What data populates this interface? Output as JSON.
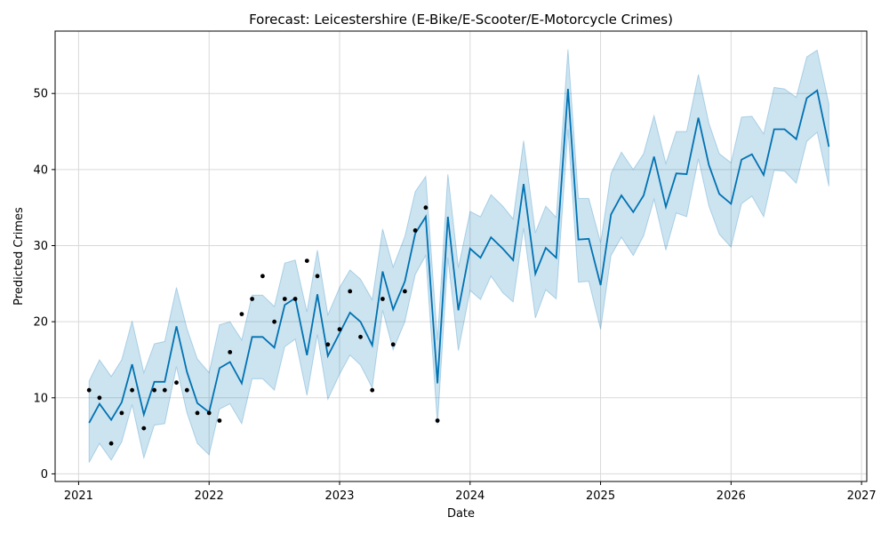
{
  "chart_data": {
    "type": "line",
    "title": "Forecast: Leicestershire (E-Bike/E-Scooter/E-Motorcycle Crimes)",
    "xlabel": "Date",
    "ylabel": "Predicted Crimes",
    "xlim": [
      2020.82,
      2027.04
    ],
    "ylim": [
      -1,
      58.2
    ],
    "x_ticks": [
      2021,
      2022,
      2023,
      2024,
      2025,
      2026,
      2027
    ],
    "y_ticks": [
      0,
      10,
      20,
      30,
      40,
      50
    ],
    "grid": true,
    "colors": {
      "forecast": "#0072B2",
      "band": "#0072B2",
      "observed": "#000000",
      "grid": "#d9d9d9"
    },
    "observed": {
      "x": [
        2021.08,
        2021.16,
        2021.25,
        2021.33,
        2021.41,
        2021.5,
        2021.58,
        2021.66,
        2021.75,
        2021.83,
        2021.91,
        2022.0,
        2022.08,
        2022.16,
        2022.25,
        2022.33,
        2022.41,
        2022.5,
        2022.58,
        2022.66,
        2022.75,
        2022.83,
        2022.91,
        2023.0,
        2023.08,
        2023.16,
        2023.25,
        2023.33,
        2023.41,
        2023.5,
        2023.58,
        2023.66,
        2023.75
      ],
      "y": [
        11,
        10,
        4,
        8,
        11,
        6,
        11,
        11,
        12,
        11,
        8,
        8,
        7,
        16,
        21,
        23,
        26,
        20,
        23,
        23,
        28,
        26,
        17,
        19,
        24,
        18,
        11,
        23,
        17,
        24,
        32,
        35,
        7
      ]
    },
    "forecast": {
      "x": [
        2021.08,
        2021.16,
        2021.25,
        2021.33,
        2021.41,
        2021.5,
        2021.58,
        2021.66,
        2021.75,
        2021.83,
        2021.91,
        2022.0,
        2022.08,
        2022.16,
        2022.25,
        2022.33,
        2022.41,
        2022.5,
        2022.58,
        2022.66,
        2022.75,
        2022.83,
        2022.91,
        2023.0,
        2023.08,
        2023.16,
        2023.25,
        2023.33,
        2023.41,
        2023.5,
        2023.58,
        2023.66,
        2023.75,
        2023.83,
        2023.91,
        2024.0,
        2024.08,
        2024.16,
        2024.25,
        2024.33,
        2024.41,
        2024.5,
        2024.58,
        2024.66,
        2024.75,
        2024.83,
        2024.91,
        2025.0,
        2025.08,
        2025.16,
        2025.25,
        2025.33,
        2025.41,
        2025.5,
        2025.58,
        2025.66,
        2025.75,
        2025.83,
        2025.91,
        2026.0,
        2026.08,
        2026.16,
        2026.25,
        2026.33,
        2026.41,
        2026.5,
        2026.58,
        2026.66,
        2026.75
      ],
      "yhat": [
        6.7,
        9.2,
        7.1,
        9.4,
        14.4,
        7.8,
        12.1,
        12.1,
        19.4,
        13.4,
        9.3,
        8.1,
        13.9,
        14.7,
        11.9,
        18.0,
        18.0,
        16.6,
        22.2,
        23.1,
        15.6,
        23.6,
        15.5,
        18.5,
        21.2,
        20.0,
        16.9,
        26.6,
        21.6,
        25.3,
        31.6,
        33.8,
        11.9,
        33.8,
        21.5,
        29.6,
        28.4,
        31.1,
        29.6,
        28.1,
        38.1,
        26.3,
        29.7,
        28.4,
        50.6,
        30.8,
        30.9,
        24.8,
        34.1,
        36.6,
        34.4,
        36.6,
        41.7,
        35.1,
        39.5,
        39.4,
        46.8,
        40.6,
        36.8,
        35.5,
        41.3,
        42.0,
        39.3,
        45.3,
        45.3,
        44.0,
        49.4,
        50.4,
        43.0
      ],
      "yhat_lower": [
        1.5,
        4.0,
        1.8,
        4.2,
        9.1,
        2.1,
        6.4,
        6.6,
        14.1,
        8.0,
        4.0,
        2.5,
        8.5,
        9.2,
        6.6,
        12.5,
        12.5,
        11.0,
        16.7,
        17.7,
        10.3,
        18.3,
        9.8,
        13.1,
        15.6,
        14.3,
        11.3,
        21.5,
        16.3,
        20.0,
        26.2,
        28.7,
        6.5,
        28.4,
        16.2,
        24.1,
        22.9,
        26.0,
        23.8,
        22.6,
        32.3,
        20.5,
        24.2,
        23.0,
        45.3,
        25.2,
        25.3,
        19.0,
        28.7,
        31.1,
        28.7,
        31.3,
        36.1,
        29.4,
        34.3,
        33.8,
        41.4,
        35.2,
        31.5,
        29.8,
        35.5,
        36.5,
        33.8,
        39.9,
        39.8,
        38.2,
        43.7,
        44.9,
        37.8
      ],
      "yhat_upper": [
        12.2,
        15.0,
        12.8,
        15.0,
        20.1,
        13.3,
        17.1,
        17.4,
        24.5,
        19.1,
        15.1,
        13.3,
        19.6,
        20.0,
        17.6,
        23.5,
        23.5,
        22.0,
        27.7,
        28.1,
        21.3,
        29.4,
        20.9,
        24.5,
        26.8,
        25.6,
        22.9,
        32.2,
        27.2,
        31.2,
        37.1,
        39.1,
        17.6,
        39.4,
        27.1,
        34.5,
        33.8,
        36.7,
        35.2,
        33.5,
        43.8,
        31.7,
        35.2,
        33.7,
        55.8,
        36.2,
        36.2,
        30.4,
        39.5,
        42.3,
        40.0,
        42.1,
        47.1,
        40.8,
        45.0,
        45.0,
        52.5,
        46.1,
        42.1,
        40.9,
        46.9,
        47.0,
        44.7,
        50.8,
        50.6,
        49.5,
        54.8,
        55.7,
        48.6
      ]
    }
  }
}
